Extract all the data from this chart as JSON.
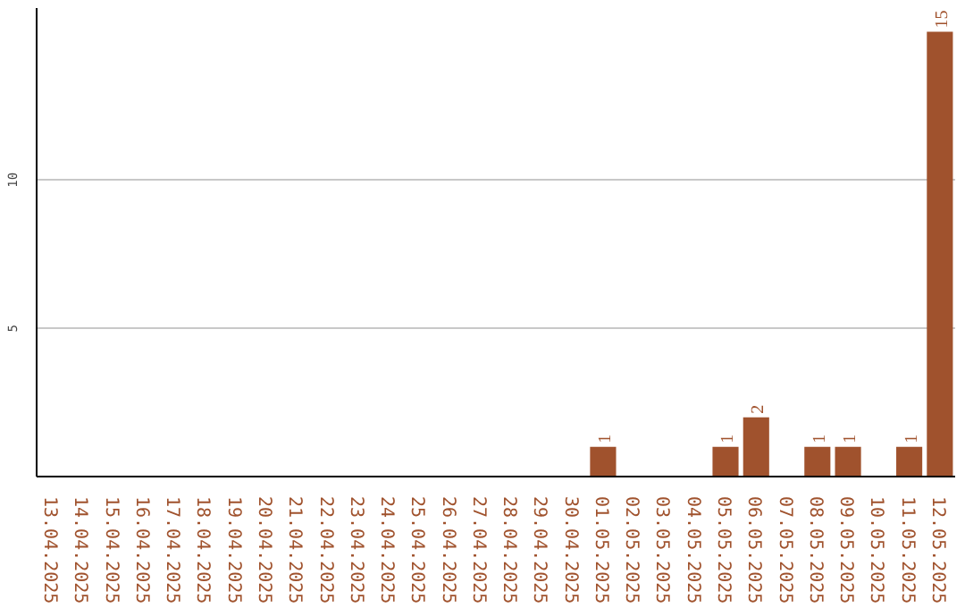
{
  "chart_data": {
    "type": "bar",
    "categories": [
      "13.04.2025",
      "14.04.2025",
      "15.04.2025",
      "16.04.2025",
      "17.04.2025",
      "18.04.2025",
      "19.04.2025",
      "20.04.2025",
      "21.04.2025",
      "22.04.2025",
      "23.04.2025",
      "24.04.2025",
      "25.04.2025",
      "26.04.2025",
      "27.04.2025",
      "28.04.2025",
      "29.04.2025",
      "30.04.2025",
      "01.05.2025",
      "02.05.2025",
      "03.05.2025",
      "04.05.2025",
      "05.05.2025",
      "06.05.2025",
      "07.05.2025",
      "08.05.2025",
      "09.05.2025",
      "10.05.2025",
      "11.05.2025",
      "12.05.2025"
    ],
    "values": [
      0,
      0,
      0,
      0,
      0,
      0,
      0,
      0,
      0,
      0,
      0,
      0,
      0,
      0,
      0,
      0,
      0,
      0,
      1,
      0,
      0,
      0,
      1,
      2,
      0,
      1,
      1,
      0,
      1,
      15
    ],
    "value_labels": [
      null,
      null,
      null,
      null,
      null,
      null,
      null,
      null,
      null,
      null,
      null,
      null,
      null,
      null,
      null,
      null,
      null,
      null,
      "1",
      null,
      null,
      null,
      "1",
      "2",
      null,
      "1",
      "1",
      null,
      "1",
      "15"
    ],
    "color": "#a0522d",
    "ylim": [
      0,
      15.8
    ],
    "yticks": [
      5,
      10
    ],
    "grid": "y"
  }
}
